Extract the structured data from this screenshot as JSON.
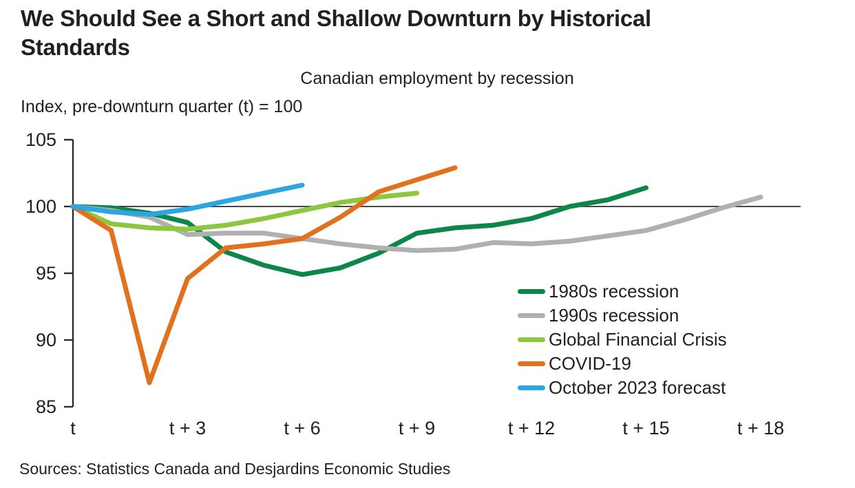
{
  "header": {
    "title": "We Should See a Short and Shallow Downturn by Historical Standards"
  },
  "footer": {
    "sources": "Sources: Statistics Canada and Desjardins Economic Studies"
  },
  "chart_data": {
    "type": "line",
    "title": "Canadian employment by recession",
    "unit_label": "Index, pre-downturn quarter (t) = 100",
    "ylim": [
      85,
      105
    ],
    "y_ticks": [
      105,
      100,
      95,
      90,
      85
    ],
    "x_tick_labels": [
      "t",
      "t + 3",
      "t + 6",
      "t + 9",
      "t + 12",
      "t + 15",
      "t + 18"
    ],
    "x_tick_positions": [
      0,
      3,
      6,
      9,
      12,
      15,
      18
    ],
    "baseline": 100,
    "grid": false,
    "legend_position": "inside right",
    "axis_color": "#2d2d2d",
    "text_color": "#231f20",
    "series": [
      {
        "name": "1980s recession",
        "color": "#0e8649",
        "x_start": 0,
        "values": [
          100,
          99.9,
          99.5,
          98.8,
          96.6,
          95.6,
          94.9,
          95.4,
          96.5,
          98.0,
          98.4,
          98.6,
          99.1,
          100.0,
          100.5,
          101.4
        ]
      },
      {
        "name": "1990s recession",
        "color": "#b0b0b3",
        "x_start": 0,
        "values": [
          100,
          99.7,
          99.2,
          97.9,
          98.0,
          98.0,
          97.6,
          97.2,
          96.9,
          96.7,
          96.8,
          97.3,
          97.2,
          97.4,
          97.8,
          98.2,
          99.0,
          99.9,
          100.7
        ]
      },
      {
        "name": "Global Financial Crisis",
        "color": "#8dc63f",
        "x_start": 0,
        "values": [
          100,
          98.7,
          98.4,
          98.3,
          98.6,
          99.1,
          99.7,
          100.3,
          100.7,
          101.0
        ]
      },
      {
        "name": "COVID-19",
        "color": "#e2711d",
        "x_start": 0,
        "values": [
          100,
          98.2,
          86.8,
          94.6,
          96.9,
          97.2,
          97.6,
          99.2,
          101.1,
          102.0,
          102.9
        ]
      },
      {
        "name": "October 2023 forecast",
        "color": "#2ba6e0",
        "x_start": 0,
        "values": [
          100,
          99.6,
          99.4,
          99.8,
          100.4,
          101.0,
          101.6
        ]
      }
    ]
  }
}
